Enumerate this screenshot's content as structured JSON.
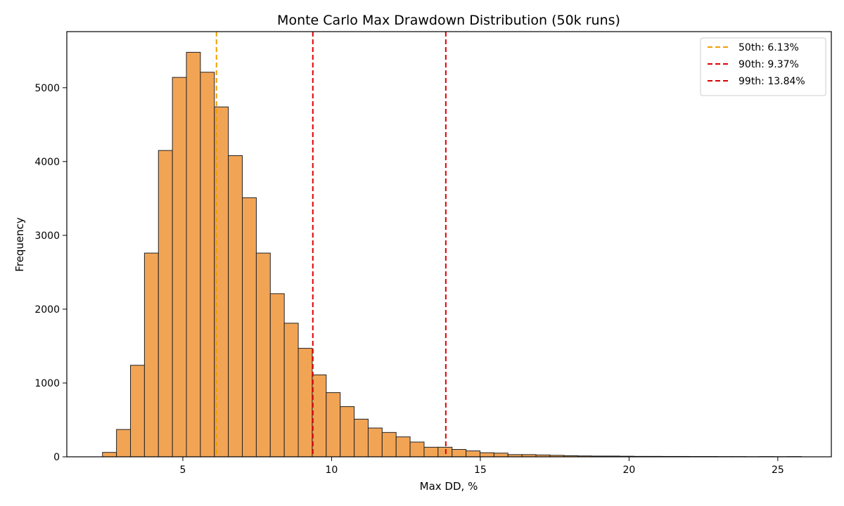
{
  "chart_data": {
    "type": "bar",
    "title": "Monte Carlo Max Drawdown Distribution (50k runs)",
    "xlabel": "Max DD, %",
    "ylabel": "Frequency",
    "xlim": [
      1.1,
      26.8
    ],
    "ylim": [
      0,
      5760
    ],
    "xticks": [
      5,
      10,
      15,
      20,
      25
    ],
    "yticks": [
      0,
      1000,
      2000,
      3000,
      4000,
      5000
    ],
    "grid": false,
    "legend_position": "top-right",
    "bar_color": "#f2a455",
    "edge_color": "#222222",
    "bin_edges_start": 2.3,
    "bin_width": 0.47,
    "counts": [
      60,
      370,
      1240,
      2760,
      4150,
      5140,
      5480,
      5210,
      4740,
      4080,
      3510,
      2760,
      2210,
      1810,
      1470,
      1110,
      870,
      680,
      510,
      390,
      330,
      270,
      200,
      130,
      130,
      100,
      80,
      55,
      50,
      30,
      30,
      25,
      20,
      15,
      12,
      10,
      10,
      8,
      6,
      6,
      5,
      5,
      4,
      4,
      3,
      3,
      2,
      3,
      2,
      3
    ],
    "vlines": [
      {
        "label": "50th: 6.13%",
        "x": 6.13,
        "color": "#f0a000"
      },
      {
        "label": "90th: 9.37%",
        "x": 9.37,
        "color": "#dd0000"
      },
      {
        "label": "99th: 13.84%",
        "x": 13.84,
        "color": "#dd0000"
      }
    ]
  }
}
